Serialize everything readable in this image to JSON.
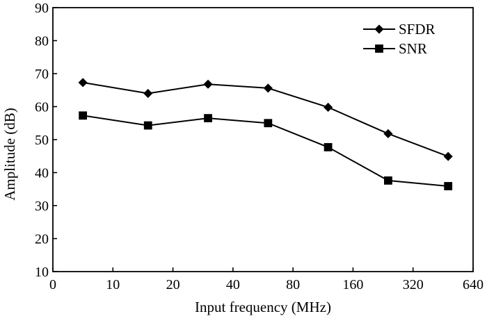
{
  "chart_data": {
    "type": "line",
    "xlabel": "Input frequency (MHz)",
    "ylabel": "Amplitude (dB)",
    "x_tick_labels": [
      "0",
      "10",
      "20",
      "40",
      "80",
      "160",
      "320",
      "640"
    ],
    "y_tick_labels": [
      "10",
      "20",
      "30",
      "40",
      "50",
      "60",
      "70",
      "80",
      "90"
    ],
    "ylim": [
      10,
      90
    ],
    "grid": false,
    "legend_position": "top-right",
    "series": [
      {
        "name": "SFDR",
        "marker": "diamond",
        "color": "#000000",
        "points": [
          {
            "x": 5,
            "y": 67.3
          },
          {
            "x": 15,
            "y": 64.0
          },
          {
            "x": 30,
            "y": 66.8
          },
          {
            "x": 60,
            "y": 65.6
          },
          {
            "x": 120,
            "y": 59.8
          },
          {
            "x": 240,
            "y": 51.8
          },
          {
            "x": 480,
            "y": 44.9
          }
        ]
      },
      {
        "name": "SNR",
        "marker": "square",
        "color": "#000000",
        "points": [
          {
            "x": 5,
            "y": 57.3
          },
          {
            "x": 15,
            "y": 54.3
          },
          {
            "x": 30,
            "y": 56.5
          },
          {
            "x": 60,
            "y": 55.0
          },
          {
            "x": 120,
            "y": 47.7
          },
          {
            "x": 240,
            "y": 37.6
          },
          {
            "x": 480,
            "y": 35.9
          }
        ]
      }
    ]
  }
}
